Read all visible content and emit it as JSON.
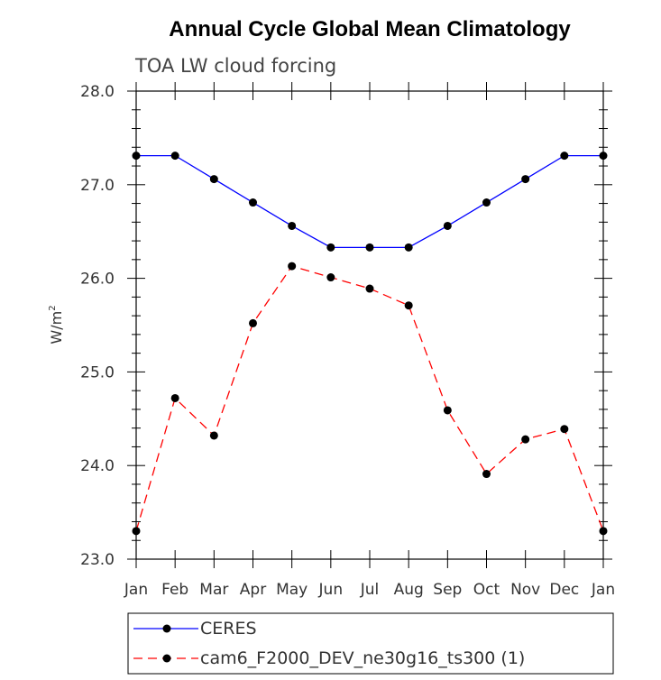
{
  "chart_data": {
    "type": "line",
    "title": "Annual Cycle Global Mean Climatology",
    "subtitle": "TOA LW cloud forcing",
    "ylabel": "W/m",
    "ylabel_superscript": "2",
    "ylim": [
      23.0,
      28.0
    ],
    "yticks": [
      "23.0",
      "24.0",
      "25.0",
      "26.0",
      "27.0",
      "28.0"
    ],
    "categories": [
      "Jan",
      "Feb",
      "Mar",
      "Apr",
      "May",
      "Jun",
      "Jul",
      "Aug",
      "Sep",
      "Oct",
      "Nov",
      "Dec",
      "Jan"
    ],
    "grid": false,
    "legend_placement": "bottom",
    "series": [
      {
        "name": "CERES",
        "color": "#0000ff",
        "dash": "solid",
        "values": [
          27.31,
          27.31,
          27.06,
          26.81,
          26.56,
          26.33,
          26.33,
          26.33,
          26.56,
          26.81,
          27.06,
          27.31,
          27.31
        ]
      },
      {
        "name": "cam6_F2000_DEV_ne30g16_ts300 (1)",
        "color": "#ff0000",
        "dash": "dashed",
        "values": [
          23.3,
          24.72,
          24.32,
          25.52,
          26.13,
          26.01,
          25.89,
          25.71,
          24.59,
          23.91,
          24.28,
          24.39,
          23.3
        ]
      }
    ]
  }
}
